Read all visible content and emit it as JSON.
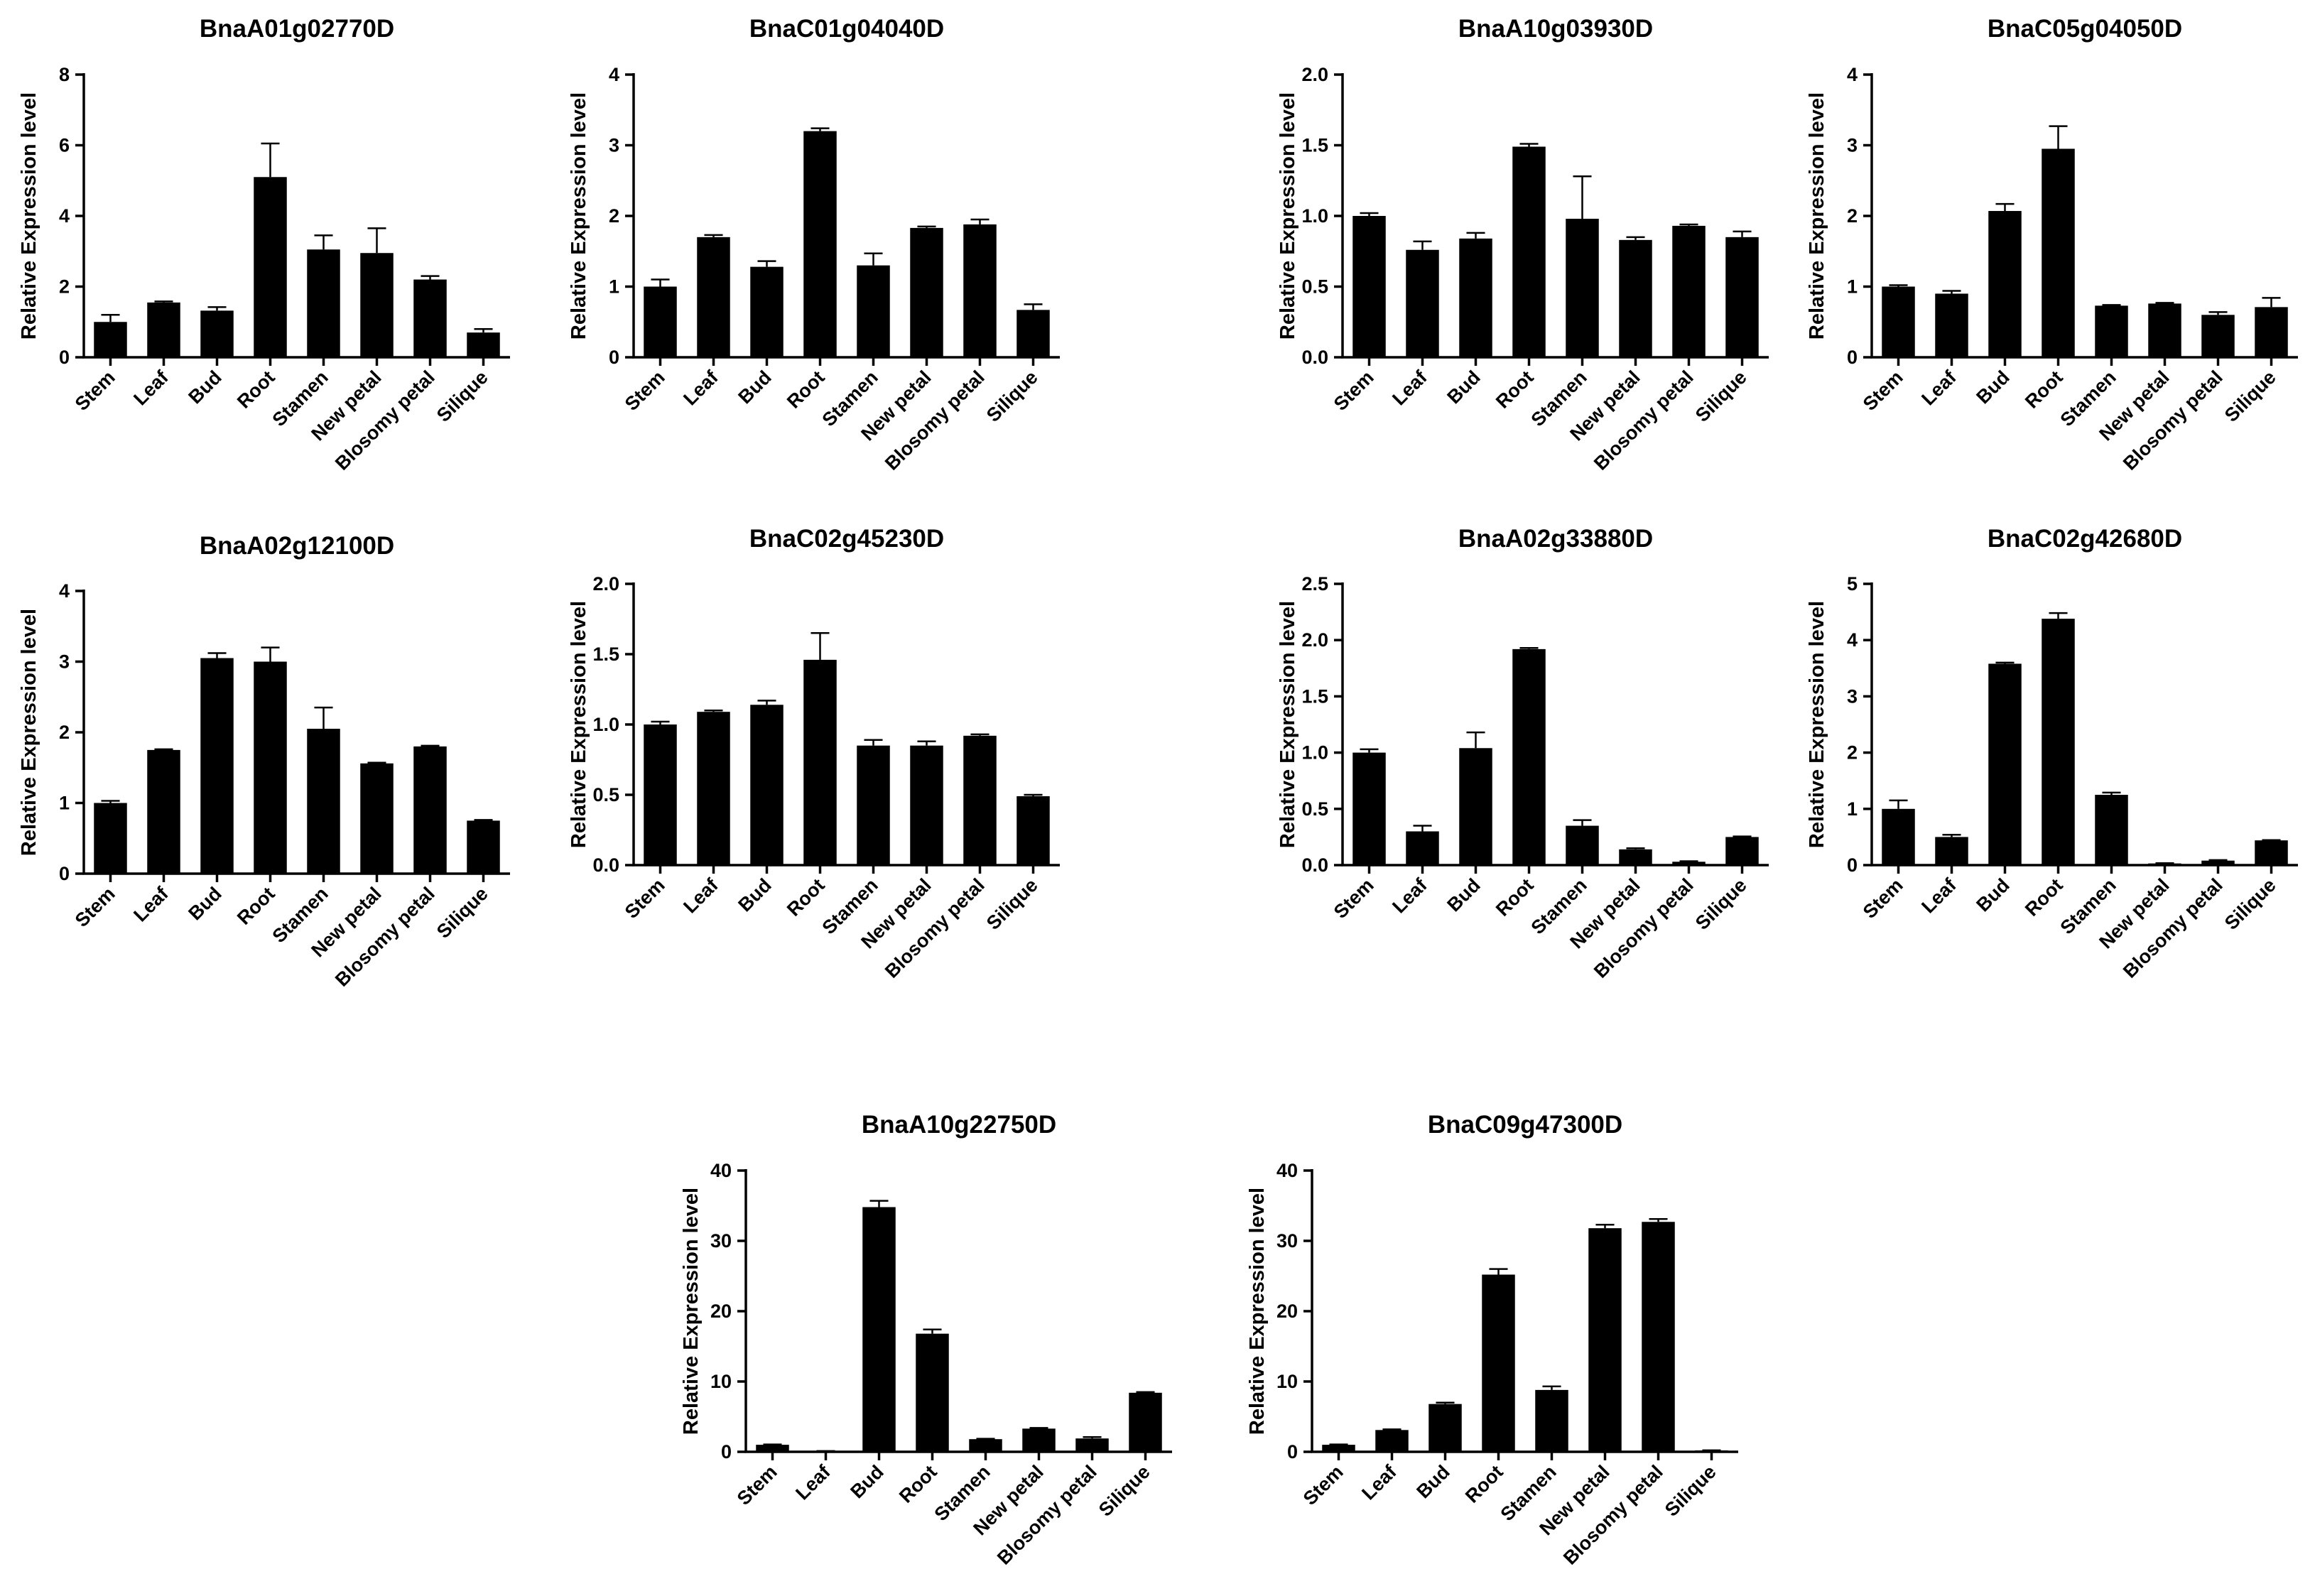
{
  "chart_data": [
    {
      "type": "bar",
      "title": "BnaA01g02770D",
      "ylabel": "Relative Expression level",
      "xlabel": "",
      "ylim": [
        0,
        8
      ],
      "yticks": [
        0,
        2,
        4,
        6,
        8
      ],
      "yticklabels": [
        "0",
        "2",
        "4",
        "6",
        "8"
      ],
      "categories": [
        "Stem",
        "Leaf",
        "Bud",
        "Root",
        "Stamen",
        "New petal",
        "Blosomy petal",
        "Silique"
      ],
      "values": [
        1.0,
        1.55,
        1.32,
        5.1,
        3.05,
        2.95,
        2.2,
        0.7
      ],
      "errors": [
        0.2,
        0.03,
        0.1,
        0.95,
        0.4,
        0.7,
        0.1,
        0.1
      ]
    },
    {
      "type": "bar",
      "title": "BnaC01g04040D",
      "ylabel": "Relative Expression level",
      "xlabel": "",
      "ylim": [
        0,
        4
      ],
      "yticks": [
        0,
        1,
        2,
        3,
        4
      ],
      "yticklabels": [
        "0",
        "1",
        "2",
        "3",
        "4"
      ],
      "categories": [
        "Stem",
        "Leaf",
        "Bud",
        "Root",
        "Stamen",
        "New petal",
        "Blosomy petal",
        "Silique"
      ],
      "values": [
        1.0,
        1.7,
        1.28,
        3.2,
        1.3,
        1.83,
        1.88,
        0.67
      ],
      "errors": [
        0.1,
        0.03,
        0.08,
        0.04,
        0.17,
        0.02,
        0.07,
        0.08
      ]
    },
    {
      "type": "bar",
      "title": "BnaA10g03930D",
      "ylabel": "Relative Expression level",
      "xlabel": "",
      "ylim": [
        0,
        2
      ],
      "yticks": [
        0,
        0.5,
        1,
        1.5,
        2
      ],
      "yticklabels": [
        "0.0",
        "0.5",
        "1.0",
        "1.5",
        "2.0"
      ],
      "categories": [
        "Stem",
        "Leaf",
        "Bud",
        "Root",
        "Stamen",
        "New petal",
        "Blosomy petal",
        "Silique"
      ],
      "values": [
        1.0,
        0.76,
        0.84,
        1.49,
        0.98,
        0.83,
        0.93,
        0.85
      ],
      "errors": [
        0.02,
        0.06,
        0.04,
        0.02,
        0.3,
        0.02,
        0.01,
        0.04
      ]
    },
    {
      "type": "bar",
      "title": "BnaC05g04050D",
      "ylabel": "Relative Expression level",
      "xlabel": "",
      "ylim": [
        0,
        4
      ],
      "yticks": [
        0,
        1,
        2,
        3,
        4
      ],
      "yticklabels": [
        "0",
        "1",
        "2",
        "3",
        "4"
      ],
      "categories": [
        "Stem",
        "Leaf",
        "Bud",
        "Root",
        "Stamen",
        "New petal",
        "Blosomy petal",
        "Silique"
      ],
      "values": [
        1.0,
        0.9,
        2.07,
        2.95,
        0.73,
        0.76,
        0.6,
        0.71
      ],
      "errors": [
        0.02,
        0.04,
        0.1,
        0.32,
        0.01,
        0.01,
        0.04,
        0.13
      ]
    },
    {
      "type": "bar",
      "title": "BnaA02g12100D",
      "ylabel": "Relative Expression level",
      "xlabel": "",
      "ylim": [
        0,
        4
      ],
      "yticks": [
        0,
        1,
        2,
        3,
        4
      ],
      "yticklabels": [
        "0",
        "1",
        "2",
        "3",
        "4"
      ],
      "categories": [
        "Stem",
        "Leaf",
        "Bud",
        "Root",
        "Stamen",
        "New petal",
        "Blosomy petal",
        "Silique"
      ],
      "values": [
        1.0,
        1.75,
        3.05,
        3.0,
        2.05,
        1.56,
        1.8,
        0.75
      ],
      "errors": [
        0.03,
        0.01,
        0.07,
        0.2,
        0.3,
        0.01,
        0.01,
        0.01
      ]
    },
    {
      "type": "bar",
      "title": "BnaC02g45230D",
      "ylabel": "Relative Expression level",
      "xlabel": "",
      "ylim": [
        0,
        2
      ],
      "yticks": [
        0,
        0.5,
        1,
        1.5,
        2
      ],
      "yticklabels": [
        "0.0",
        "0.5",
        "1.0",
        "1.5",
        "2.0"
      ],
      "categories": [
        "Stem",
        "Leaf",
        "Bud",
        "Root",
        "Stamen",
        "New petal",
        "Blosomy petal",
        "Silique"
      ],
      "values": [
        1.0,
        1.09,
        1.14,
        1.46,
        0.85,
        0.85,
        0.92,
        0.49
      ],
      "errors": [
        0.02,
        0.01,
        0.03,
        0.19,
        0.04,
        0.03,
        0.01,
        0.01
      ]
    },
    {
      "type": "bar",
      "title": "BnaA02g33880D",
      "ylabel": "Relative Expression level",
      "xlabel": "",
      "ylim": [
        0,
        2.5
      ],
      "yticks": [
        0,
        0.5,
        1,
        1.5,
        2,
        2.5
      ],
      "yticklabels": [
        "0.0",
        "0.5",
        "1.0",
        "1.5",
        "2.0",
        "2.5"
      ],
      "categories": [
        "Stem",
        "Leaf",
        "Bud",
        "Root",
        "Stamen",
        "New petal",
        "Blosomy petal",
        "Silique"
      ],
      "values": [
        1.0,
        0.3,
        1.04,
        1.92,
        0.35,
        0.14,
        0.03,
        0.25
      ],
      "errors": [
        0.03,
        0.05,
        0.14,
        0.01,
        0.05,
        0.01,
        0.005,
        0.005
      ]
    },
    {
      "type": "bar",
      "title": "BnaC02g42680D",
      "ylabel": "Relative Expression level",
      "xlabel": "",
      "ylim": [
        0,
        5
      ],
      "yticks": [
        0,
        1,
        2,
        3,
        4,
        5
      ],
      "yticklabels": [
        "0",
        "1",
        "2",
        "3",
        "4",
        "5"
      ],
      "categories": [
        "Stem",
        "Leaf",
        "Bud",
        "Root",
        "Stamen",
        "New petal",
        "Blosomy petal",
        "Silique"
      ],
      "values": [
        1.0,
        0.5,
        3.58,
        4.38,
        1.25,
        0.03,
        0.08,
        0.44
      ],
      "errors": [
        0.15,
        0.04,
        0.02,
        0.1,
        0.04,
        0.005,
        0.01,
        0.005
      ]
    },
    {
      "type": "bar",
      "title": "BnaA10g22750D",
      "ylabel": "Relative Expression level",
      "xlabel": "",
      "ylim": [
        0,
        40
      ],
      "yticks": [
        0,
        10,
        20,
        30,
        40
      ],
      "yticklabels": [
        "0",
        "10",
        "20",
        "30",
        "40"
      ],
      "categories": [
        "Stem",
        "Leaf",
        "Bud",
        "Root",
        "Stamen",
        "New petal",
        "Blosomy petal",
        "Silique"
      ],
      "values": [
        1.0,
        0.1,
        34.8,
        16.8,
        1.8,
        3.3,
        1.9,
        8.4
      ],
      "errors": [
        0.05,
        0.01,
        0.9,
        0.6,
        0.05,
        0.1,
        0.2,
        0.1
      ]
    },
    {
      "type": "bar",
      "title": "BnaC09g47300D",
      "ylabel": "Relative Expression level",
      "xlabel": "",
      "ylim": [
        0,
        40
      ],
      "yticks": [
        0,
        10,
        20,
        30,
        40
      ],
      "yticklabels": [
        "0",
        "10",
        "20",
        "30",
        "40"
      ],
      "categories": [
        "Stem",
        "Leaf",
        "Bud",
        "Root",
        "Stamen",
        "New petal",
        "Blosomy petal",
        "Silique"
      ],
      "values": [
        1.0,
        3.1,
        6.8,
        25.2,
        8.8,
        31.8,
        32.7,
        0.2
      ],
      "errors": [
        0.05,
        0.1,
        0.2,
        0.8,
        0.5,
        0.5,
        0.4,
        0.01
      ]
    }
  ]
}
